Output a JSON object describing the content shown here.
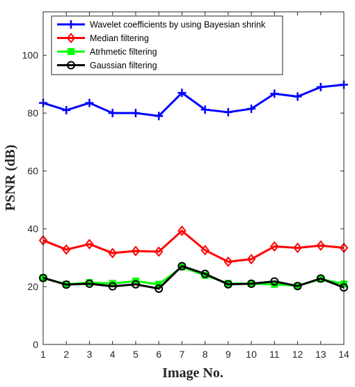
{
  "chart_data": {
    "type": "line",
    "title": "",
    "xlabel": "Image No.",
    "ylabel": "PSNR  (dB)",
    "xlim": [
      1,
      14
    ],
    "ylim": [
      0,
      115
    ],
    "x": [
      1,
      2,
      3,
      4,
      5,
      6,
      7,
      8,
      9,
      10,
      11,
      12,
      13,
      14
    ],
    "xticks": [
      "1",
      "2",
      "3",
      "4",
      "5",
      "6",
      "7",
      "8",
      "9",
      "10",
      "11",
      "12",
      "13",
      "14"
    ],
    "yticks": [
      0,
      20,
      40,
      60,
      80,
      100
    ],
    "grid": false,
    "legend_position": "top-left",
    "series": [
      {
        "name": "Wavelet coefficients by using Bayesian shrink",
        "color": "#0000ff",
        "marker": "plus",
        "values": [
          83.5,
          81.0,
          83.5,
          80.0,
          80.0,
          79.0,
          87.0,
          81.2,
          80.3,
          81.5,
          86.7,
          85.7,
          89.0,
          89.8
        ]
      },
      {
        "name": "Median filtering",
        "color": "#ff0000",
        "marker": "diamond",
        "values": [
          36.0,
          32.8,
          34.7,
          31.6,
          32.3,
          32.1,
          39.3,
          32.6,
          28.6,
          29.5,
          33.9,
          33.4,
          34.2,
          33.4
        ]
      },
      {
        "name": "Atrhmetic filtering",
        "color": "#00ff00",
        "marker": "square",
        "values": [
          23.0,
          20.8,
          21.4,
          21.1,
          21.9,
          20.8,
          26.8,
          23.9,
          21.1,
          21.0,
          20.8,
          20.3,
          22.6,
          20.9
        ]
      },
      {
        "name": "Gaussian filtering",
        "color": "#000000",
        "marker": "circle",
        "values": [
          23.0,
          20.7,
          21.0,
          20.1,
          20.8,
          19.3,
          27.1,
          24.4,
          20.8,
          21.0,
          21.8,
          20.2,
          22.8,
          19.7
        ]
      }
    ]
  }
}
